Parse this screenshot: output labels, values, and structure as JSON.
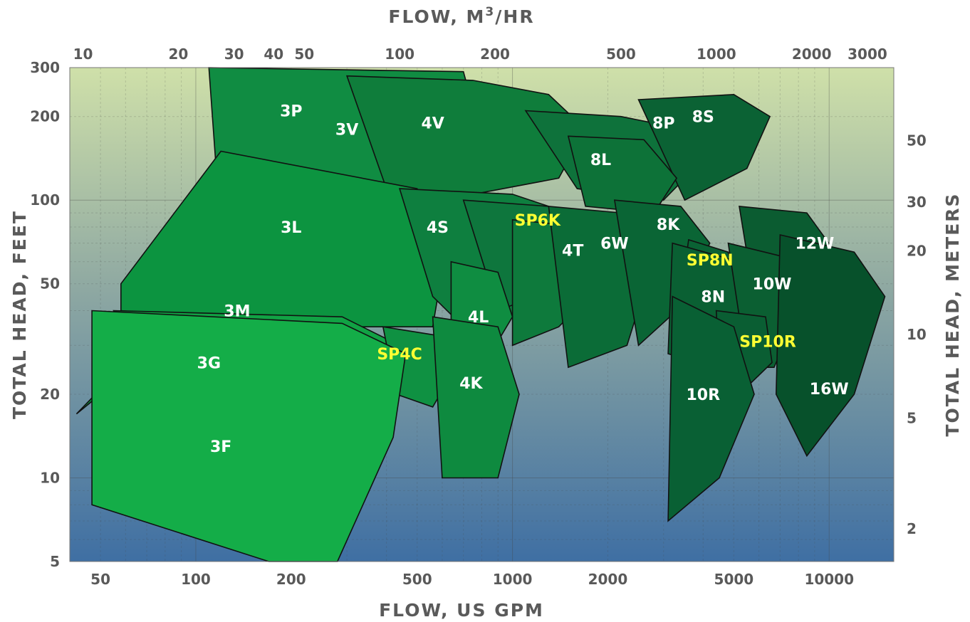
{
  "chart_data": {
    "type": "area",
    "x_axis_bottom": {
      "label": "FLOW, US GPM",
      "scale": "log",
      "range": [
        40,
        16000
      ],
      "ticks": [
        "50",
        "100",
        "200",
        "500",
        "1000",
        "2000",
        "5000",
        "10000"
      ],
      "tick_values": [
        50,
        100,
        200,
        500,
        1000,
        2000,
        5000,
        10000
      ]
    },
    "x_axis_top": {
      "label_main": "FLOW,  M",
      "label_sup": "3",
      "label_tail": "/HR",
      "scale": "log",
      "ticks": [
        "10",
        "20",
        "30",
        "40",
        "50",
        "100",
        "200",
        "500",
        "1000",
        "2000",
        "3000"
      ],
      "tick_values": [
        10,
        20,
        30,
        40,
        50,
        100,
        200,
        500,
        1000,
        2000,
        3000
      ]
    },
    "y_axis_left": {
      "label": "TOTAL HEAD, FEET",
      "scale": "log",
      "range": [
        5,
        300
      ],
      "ticks": [
        "5",
        "10",
        "20",
        "50",
        "100",
        "200",
        "300"
      ],
      "tick_values": [
        5,
        10,
        20,
        50,
        100,
        200,
        300
      ]
    },
    "y_axis_right": {
      "label": "TOTAL HEAD, METERS",
      "scale": "log",
      "ticks": [
        "2",
        "5",
        "10",
        "20",
        "30",
        "50"
      ],
      "tick_values": [
        2,
        5,
        10,
        20,
        30,
        50
      ]
    },
    "grid": true,
    "background_gradient": [
      "#cfe0a9",
      "#8ea8a2",
      "#3f6fa3"
    ],
    "series": [
      {
        "name": "3V",
        "color": "#0e8a3e",
        "label_color": "#ffffff",
        "label_at": [
          300,
          180
        ],
        "boundary": [
          [
            42,
            17
          ],
          [
            430,
            265
          ],
          [
            470,
            230
          ],
          [
            480,
            120
          ],
          [
            460,
            90
          ],
          [
            300,
            80
          ],
          [
            120,
            45
          ]
        ]
      },
      {
        "name": "3P",
        "color": "#108c42",
        "label_color": "#ffffff",
        "label_at": [
          200,
          210
        ],
        "boundary": [
          [
            110,
            300
          ],
          [
            700,
            290
          ],
          [
            760,
            205
          ],
          [
            600,
            110
          ],
          [
            400,
            80
          ],
          [
            120,
            75
          ]
        ]
      },
      {
        "name": "4V",
        "color": "#0f7d3b",
        "label_color": "#ffffff",
        "label_at": [
          560,
          190
        ],
        "boundary": [
          [
            300,
            280
          ],
          [
            750,
            270
          ],
          [
            1300,
            240
          ],
          [
            1700,
            180
          ],
          [
            1400,
            120
          ],
          [
            600,
            100
          ],
          [
            400,
            110
          ]
        ]
      },
      {
        "name": "3L",
        "color": "#0c9440",
        "label_color": "#ffffff",
        "label_at": [
          200,
          80
        ],
        "boundary": [
          [
            58,
            50
          ],
          [
            120,
            150
          ],
          [
            500,
            110
          ],
          [
            620,
            70
          ],
          [
            560,
            35
          ],
          [
            230,
            35
          ],
          [
            58,
            40
          ]
        ]
      },
      {
        "name": "4S",
        "color": "#0e7f3f",
        "label_color": "#ffffff",
        "label_at": [
          580,
          80
        ],
        "boundary": [
          [
            440,
            110
          ],
          [
            1000,
            105
          ],
          [
            1500,
            90
          ],
          [
            1700,
            60
          ],
          [
            1200,
            40
          ],
          [
            700,
            35
          ],
          [
            560,
            45
          ]
        ]
      },
      {
        "name": "8P",
        "color": "#0e723b",
        "label_color": "#ffffff",
        "label_at": [
          3000,
          190
        ],
        "boundary": [
          [
            1100,
            210
          ],
          [
            2200,
            200
          ],
          [
            3500,
            180
          ],
          [
            4000,
            140
          ],
          [
            3000,
            100
          ],
          [
            1600,
            110
          ]
        ]
      },
      {
        "name": "8S",
        "color": "#0b6234",
        "label_color": "#ffffff",
        "label_at": [
          4000,
          200
        ],
        "boundary": [
          [
            2500,
            230
          ],
          [
            5000,
            240
          ],
          [
            6500,
            200
          ],
          [
            5500,
            130
          ],
          [
            3500,
            100
          ]
        ]
      },
      {
        "name": "8L",
        "color": "#0d7238",
        "label_color": "#ffffff",
        "label_at": [
          1900,
          140
        ],
        "boundary": [
          [
            1500,
            170
          ],
          [
            2600,
            165
          ],
          [
            3300,
            120
          ],
          [
            2800,
            90
          ],
          [
            1700,
            95
          ]
        ]
      },
      {
        "name": "SP6K",
        "color": "#0e763d",
        "label_color": "#ffff33",
        "label_at": [
          1200,
          85
        ],
        "boundary": [
          [
            700,
            100
          ],
          [
            1300,
            95
          ],
          [
            1700,
            70
          ],
          [
            1500,
            50
          ],
          [
            900,
            40
          ]
        ]
      },
      {
        "name": "4T",
        "color": "#0e7a3c",
        "label_color": "#ffffff",
        "label_at": [
          1550,
          66
        ],
        "boundary": [
          [
            1000,
            85
          ],
          [
            1700,
            80
          ],
          [
            1900,
            50
          ],
          [
            1400,
            35
          ],
          [
            1000,
            30
          ]
        ]
      },
      {
        "name": "6W",
        "color": "#0b6c37",
        "label_color": "#ffffff",
        "label_at": [
          2100,
          70
        ],
        "boundary": [
          [
            1300,
            95
          ],
          [
            2200,
            90
          ],
          [
            2900,
            70
          ],
          [
            2300,
            30
          ],
          [
            1500,
            25
          ]
        ]
      },
      {
        "name": "8K",
        "color": "#0a6535",
        "label_color": "#ffffff",
        "label_at": [
          3100,
          82
        ],
        "boundary": [
          [
            2100,
            100
          ],
          [
            3400,
            95
          ],
          [
            4200,
            70
          ],
          [
            3300,
            40
          ],
          [
            2500,
            30
          ]
        ]
      },
      {
        "name": "SP8N",
        "color": "#0a6234",
        "label_color": "#ffff33",
        "label_at": [
          4200,
          61
        ],
        "boundary": [
          [
            3600,
            72
          ],
          [
            4800,
            65
          ],
          [
            5100,
            50
          ],
          [
            4200,
            38
          ],
          [
            3400,
            45
          ]
        ]
      },
      {
        "name": "8N",
        "color": "#0a6033",
        "label_color": "#ffffff",
        "label_at": [
          4300,
          45
        ],
        "boundary": [
          [
            3200,
            70
          ],
          [
            5200,
            60
          ],
          [
            5400,
            35
          ],
          [
            4300,
            25
          ],
          [
            3100,
            28
          ]
        ]
      },
      {
        "name": "12W",
        "color": "#0b5c31",
        "label_color": "#ffffff",
        "label_at": [
          9000,
          70
        ],
        "boundary": [
          [
            5200,
            95
          ],
          [
            8500,
            90
          ],
          [
            11000,
            60
          ],
          [
            9500,
            35
          ],
          [
            7200,
            25
          ],
          [
            6000,
            35
          ]
        ]
      },
      {
        "name": "10W",
        "color": "#0b5f32",
        "label_color": "#ffffff",
        "label_at": [
          6600,
          50
        ],
        "boundary": [
          [
            4800,
            70
          ],
          [
            7400,
            62
          ],
          [
            8000,
            40
          ],
          [
            6700,
            25
          ],
          [
            5500,
            25
          ]
        ]
      },
      {
        "name": "SP10R",
        "color": "#0a5e33",
        "label_color": "#ffff33",
        "label_at": [
          6400,
          31
        ],
        "boundary": [
          [
            4400,
            40
          ],
          [
            6300,
            38
          ],
          [
            6600,
            26
          ],
          [
            5200,
            20
          ],
          [
            4500,
            25
          ]
        ]
      },
      {
        "name": "10R",
        "color": "#096034",
        "label_color": "#ffffff",
        "label_at": [
          4000,
          20
        ],
        "boundary": [
          [
            3200,
            45
          ],
          [
            5000,
            35
          ],
          [
            5800,
            20
          ],
          [
            4500,
            10
          ],
          [
            3100,
            7
          ]
        ]
      },
      {
        "name": "16W",
        "color": "#07512b",
        "label_color": "#ffffff",
        "label_at": [
          10000,
          21
        ],
        "boundary": [
          [
            7000,
            75
          ],
          [
            12000,
            65
          ],
          [
            15000,
            45
          ],
          [
            12000,
            20
          ],
          [
            8500,
            12
          ],
          [
            6800,
            20
          ]
        ]
      },
      {
        "name": "3M",
        "color": "#11a244",
        "label_color": "#ffffff",
        "label_at": [
          135,
          40
        ],
        "boundary": [
          [
            55,
            40
          ],
          [
            290,
            38
          ],
          [
            440,
            30
          ],
          [
            370,
            20
          ],
          [
            240,
            20
          ],
          [
            60,
            27
          ]
        ]
      },
      {
        "name": "4L",
        "color": "#0f8d41",
        "label_color": "#ffffff",
        "label_at": [
          780,
          38
        ],
        "boundary": [
          [
            640,
            60
          ],
          [
            900,
            55
          ],
          [
            1000,
            38
          ],
          [
            820,
            26
          ],
          [
            640,
            33
          ]
        ]
      },
      {
        "name": "SP4C",
        "color": "#0f9142",
        "label_color": "#ffff33",
        "label_at": [
          440,
          28
        ],
        "boundary": [
          [
            390,
            35
          ],
          [
            640,
            32
          ],
          [
            700,
            28
          ],
          [
            560,
            18
          ],
          [
            430,
            20
          ]
        ]
      },
      {
        "name": "4K",
        "color": "#0e8a3f",
        "label_color": "#ffffff",
        "label_at": [
          740,
          22
        ],
        "boundary": [
          [
            560,
            38
          ],
          [
            900,
            35
          ],
          [
            1050,
            20
          ],
          [
            900,
            10
          ],
          [
            600,
            10
          ]
        ]
      },
      {
        "name": "3G",
        "color": "#12a846",
        "label_color": "#ffffff",
        "label_at": [
          110,
          26
        ],
        "boundary": [
          [
            50,
            38
          ],
          [
            300,
            34
          ],
          [
            400,
            25
          ],
          [
            320,
            15
          ],
          [
            190,
            15
          ],
          [
            50,
            22
          ]
        ]
      },
      {
        "name": "3F",
        "color": "#14ad48",
        "label_color": "#ffffff",
        "label_at": [
          120,
          13
        ],
        "boundary": [
          [
            47,
            40
          ],
          [
            290,
            36
          ],
          [
            460,
            28
          ],
          [
            420,
            14
          ],
          [
            280,
            5
          ],
          [
            170,
            5
          ],
          [
            47,
            8
          ]
        ]
      }
    ]
  }
}
